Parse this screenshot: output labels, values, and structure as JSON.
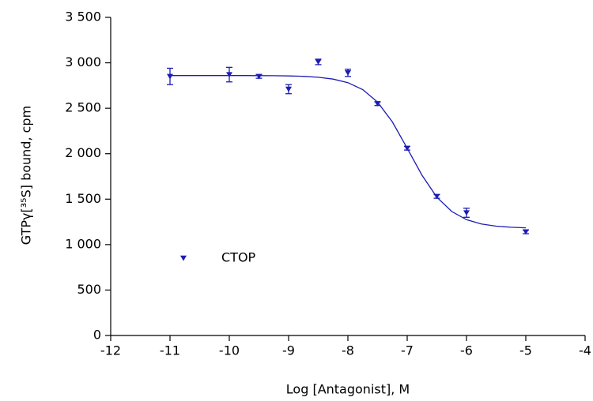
{
  "chart_data": {
    "type": "scatter",
    "x_label": "Log [Antagonist], M",
    "y_label": "GTPγ[³⁵S] bound, cpm",
    "xlim": [
      -12,
      -4
    ],
    "xticks": [
      -12,
      -11,
      -10,
      -9,
      -8,
      -7,
      -6,
      -5,
      -4
    ],
    "ylim": [
      0,
      3500
    ],
    "yticks": [
      0,
      500,
      {
        "value": 1000,
        "label": "1 000"
      },
      {
        "value": 1500,
        "label": "1 500"
      },
      {
        "value": 2000,
        "label": "2 000"
      },
      {
        "value": 2500,
        "label": "2 500"
      },
      {
        "value": 3000,
        "label": "3 000"
      },
      {
        "value": 3500,
        "label": "3 500"
      }
    ],
    "grid": false,
    "legend": "left",
    "series": [
      {
        "name": "CTOP",
        "color": "#1c1cb4",
        "x": [
          -11,
          -10,
          -9.5,
          -9,
          -8.5,
          -8,
          -7.5,
          -7,
          -6.5,
          -6,
          -5
        ],
        "values": [
          2850,
          2870,
          2850,
          2710,
          3010,
          2890,
          2550,
          2060,
          1530,
          1350,
          1140
        ],
        "errors": [
          90,
          80,
          20,
          50,
          30,
          40,
          20,
          20,
          20,
          50,
          20
        ]
      }
    ],
    "fit": {
      "color": "#1c1cb4",
      "x": [
        -11,
        -10.75,
        -10.5,
        -10.25,
        -10,
        -9.75,
        -9.5,
        -9.25,
        -9,
        -8.75,
        -8.5,
        -8.25,
        -8,
        -7.75,
        -7.5,
        -7.25,
        -7,
        -6.75,
        -6.5,
        -6.25,
        -6,
        -5.75,
        -5.5,
        -5.25,
        -5
      ],
      "values": [
        2860,
        2860,
        2860,
        2860,
        2860,
        2860,
        2859,
        2858,
        2856,
        2851,
        2841,
        2821,
        2782,
        2705,
        2568,
        2349,
        2060,
        1762,
        1522,
        1364,
        1274,
        1226,
        1203,
        1191,
        1185
      ]
    }
  }
}
